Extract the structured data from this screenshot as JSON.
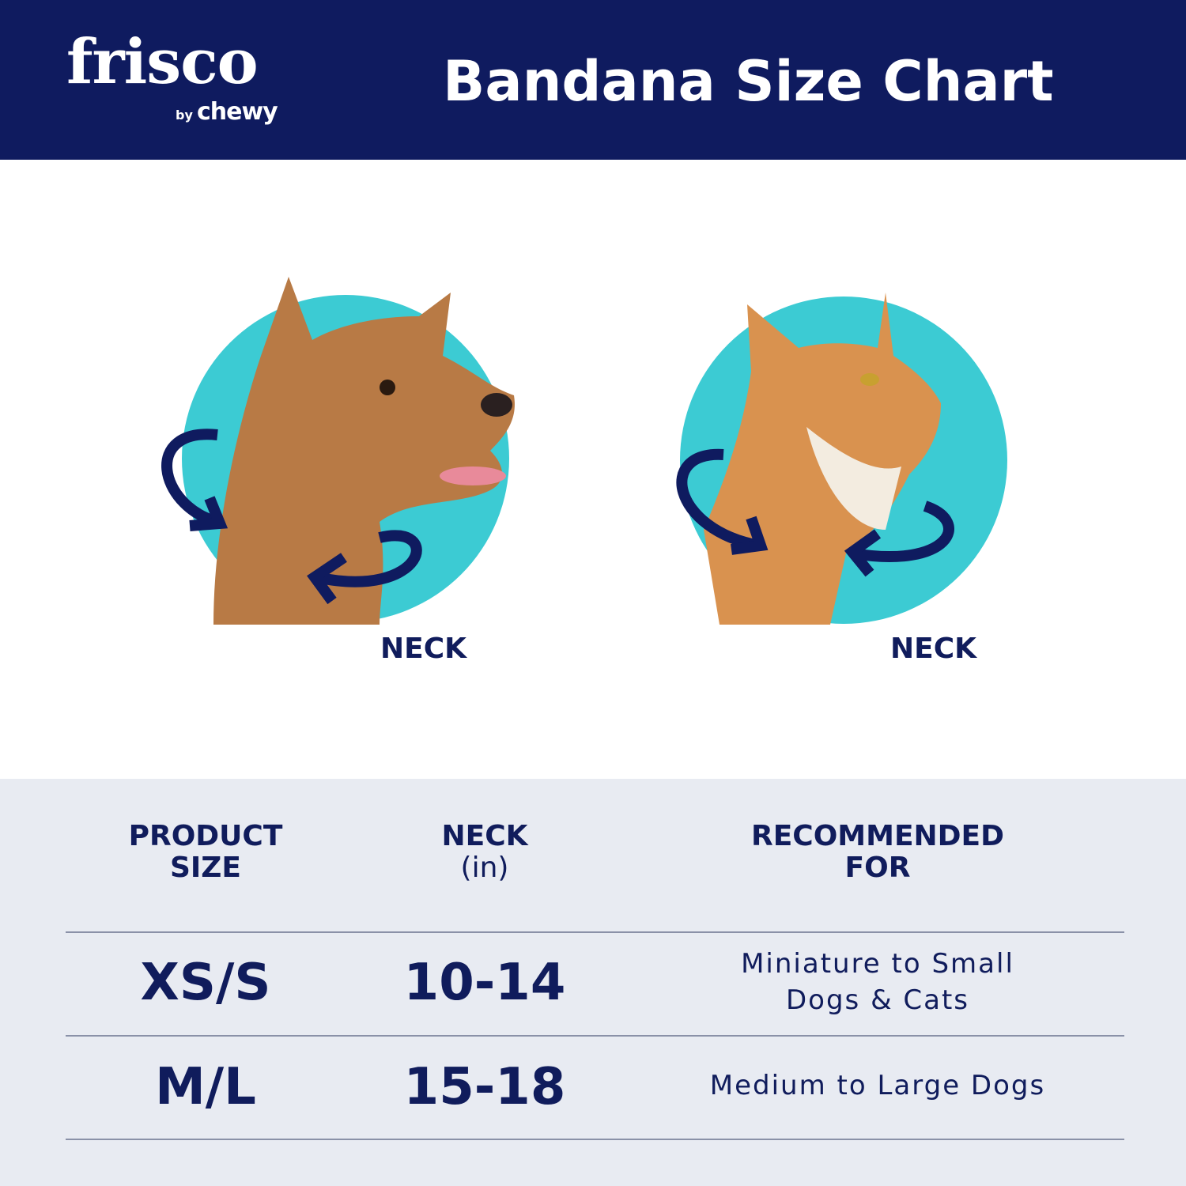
{
  "brand": {
    "logo": "frisco",
    "logo_sub_by": "by",
    "logo_sub_name": "chewy"
  },
  "header": {
    "title": "Bandana Size Chart"
  },
  "illustrations": [
    {
      "animal": "dog",
      "label": "NECK"
    },
    {
      "animal": "cat",
      "label": "NECK"
    }
  ],
  "colors": {
    "navy": "#0f1b5f",
    "teal": "#3ccbd3",
    "table_bg": "#e8ebf2"
  },
  "table": {
    "headers": [
      {
        "line1": "PRODUCT",
        "line2": "SIZE"
      },
      {
        "line1": "NECK",
        "line2": "(in)"
      },
      {
        "line1": "RECOMMENDED",
        "line2": "FOR"
      }
    ],
    "rows": [
      {
        "size": "XS/S",
        "neck": "10-14",
        "recommended_line1": "Miniature to Small",
        "recommended_line2": "Dogs & Cats"
      },
      {
        "size": "M/L",
        "neck": "15-18",
        "recommended_line1": "Medium to Large Dogs",
        "recommended_line2": ""
      }
    ]
  }
}
